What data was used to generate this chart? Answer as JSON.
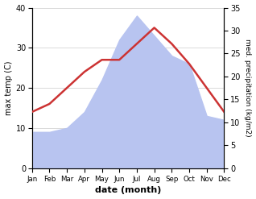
{
  "months": [
    "Jan",
    "Feb",
    "Mar",
    "Apr",
    "May",
    "Jun",
    "Jul",
    "Aug",
    "Sep",
    "Oct",
    "Nov",
    "Dec"
  ],
  "temperature": [
    14,
    16,
    20,
    24,
    27,
    27,
    31,
    35,
    31,
    26,
    20,
    14
  ],
  "precipitation_mm": [
    9,
    9,
    10,
    14,
    22,
    32,
    38,
    33,
    28,
    26,
    13,
    12
  ],
  "temp_color": "#cc3333",
  "precip_fill_color": "#b8c4f0",
  "temp_ylim": [
    0,
    40
  ],
  "precip_ylim": [
    0,
    35
  ],
  "temp_yticks": [
    0,
    10,
    20,
    30,
    40
  ],
  "precip_yticks": [
    0,
    5,
    10,
    15,
    20,
    25,
    30,
    35
  ],
  "xlabel": "date (month)",
  "ylabel_left": "max temp (C)",
  "ylabel_right": "med. precipitation (kg/m2)",
  "bg_color": "#ffffff",
  "grid_color": "#cccccc"
}
